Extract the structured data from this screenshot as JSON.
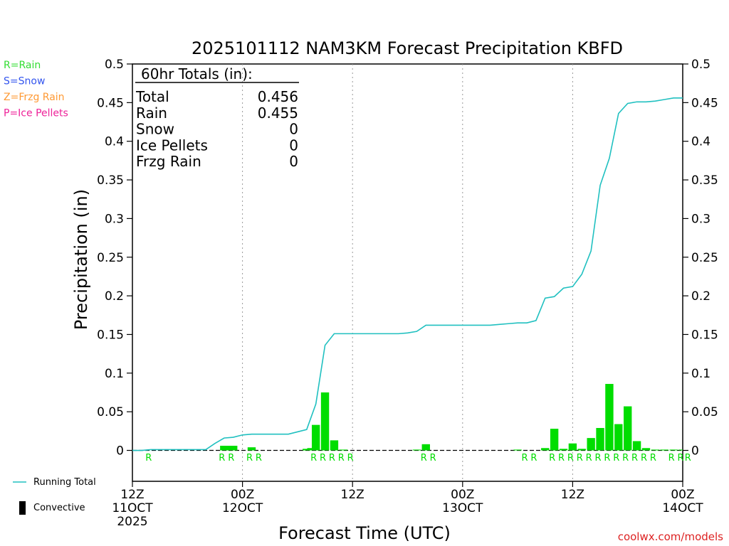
{
  "chart_data": {
    "type": "bar",
    "title": "2025101112 NAM3KM Forecast Precipitation KBFD",
    "xlabel": "Forecast Time (UTC)",
    "ylabel": "Precipitation (in)",
    "ylim": [
      -0.04,
      0.5
    ],
    "y_ticks": [
      0,
      0.05,
      0.1,
      0.15,
      0.2,
      0.25,
      0.3,
      0.35,
      0.4,
      0.45,
      0.5
    ],
    "y_tick_labels": [
      "0",
      "0.05",
      "0.1",
      "0.15",
      "0.2",
      "0.25",
      "0.3",
      "0.35",
      "0.4",
      "0.45",
      "0.5"
    ],
    "x_range_hours": [
      0,
      60
    ],
    "x_ticks": [
      {
        "hour": 0,
        "lines": [
          "12Z",
          "11OCT",
          "2025"
        ]
      },
      {
        "hour": 12,
        "lines": [
          "00Z",
          "12OCT"
        ]
      },
      {
        "hour": 24,
        "lines": [
          "12Z"
        ]
      },
      {
        "hour": 36,
        "lines": [
          "00Z",
          "13OCT"
        ]
      },
      {
        "hour": 48,
        "lines": [
          "12Z"
        ]
      },
      {
        "hour": 60,
        "lines": [
          "00Z",
          "14OCT"
        ]
      }
    ],
    "grid_x_hours": [
      12,
      24,
      36,
      48
    ],
    "bar_series": {
      "name": "Hourly Precipitation",
      "color": "#00dd00",
      "hours": [
        10,
        10.5,
        11,
        13,
        19,
        19.5,
        20,
        21,
        22,
        23,
        31,
        32,
        42,
        45,
        46,
        47,
        48,
        49,
        50,
        51,
        52,
        53,
        54,
        55,
        56,
        57,
        58,
        59,
        60
      ],
      "values": [
        0.006,
        0.006,
        0.006,
        0.004,
        0.002,
        0.003,
        0.033,
        0.075,
        0.013,
        0.001,
        0.001,
        0.008,
        0.001,
        0.003,
        0.028,
        0.002,
        0.009,
        0.002,
        0.016,
        0.029,
        0.086,
        0.034,
        0.057,
        0.012,
        0.003,
        0.001,
        0.001,
        0.001,
        0.001
      ]
    },
    "running_total": {
      "name": "Running Total",
      "color": "#20c0c0",
      "hours": [
        0,
        1,
        2,
        3,
        4,
        5,
        6,
        7,
        8,
        9,
        10,
        11,
        12,
        13,
        14,
        15,
        16,
        17,
        18,
        19,
        20,
        21,
        22,
        23,
        24,
        25,
        26,
        27,
        28,
        29,
        30,
        31,
        32,
        33,
        34,
        35,
        36,
        37,
        38,
        39,
        40,
        41,
        42,
        43,
        44,
        45,
        46,
        47,
        48,
        49,
        50,
        51,
        52,
        53,
        54,
        55,
        56,
        57,
        58,
        59,
        60
      ],
      "values": [
        0,
        0,
        0.001,
        0.001,
        0.001,
        0.001,
        0.001,
        0.001,
        0.001,
        0.009,
        0.016,
        0.017,
        0.02,
        0.021,
        0.021,
        0.021,
        0.021,
        0.021,
        0.024,
        0.027,
        0.06,
        0.136,
        0.151,
        0.151,
        0.151,
        0.151,
        0.151,
        0.151,
        0.151,
        0.151,
        0.152,
        0.154,
        0.162,
        0.162,
        0.162,
        0.162,
        0.162,
        0.162,
        0.162,
        0.162,
        0.163,
        0.164,
        0.165,
        0.165,
        0.168,
        0.197,
        0.199,
        0.21,
        0.212,
        0.228,
        0.258,
        0.343,
        0.378,
        0.436,
        0.449,
        0.451,
        0.451,
        0.452,
        0.454,
        0.456,
        0.456
      ]
    },
    "ptype_markers": {
      "color": "#00dd00",
      "hours": [
        2,
        10,
        11,
        13,
        14,
        20,
        21,
        22,
        23,
        24,
        32,
        33,
        43,
        44,
        46,
        47,
        48,
        49,
        50,
        51,
        52,
        53,
        54,
        55,
        56,
        57,
        59,
        60,
        60.8
      ],
      "labels": [
        "R",
        "R",
        "R",
        "R",
        "R",
        "R",
        "R",
        "R",
        "R",
        "R",
        "R",
        "R",
        "R",
        "R",
        "R",
        "R",
        "R",
        "R",
        "R",
        "R",
        "R",
        "R",
        "R",
        "R",
        "R",
        "R",
        "R",
        "R",
        "R"
      ]
    },
    "totals_box": {
      "header": "60hr Totals (in):",
      "rows": [
        {
          "label": "Total",
          "value": "0.456"
        },
        {
          "label": "Rain",
          "value": "0.455"
        },
        {
          "label": "Snow",
          "value": "0"
        },
        {
          "label": "Ice Pellets",
          "value": "0"
        },
        {
          "label": "Frzg Rain",
          "value": "0"
        }
      ]
    },
    "ptype_legend": [
      {
        "text": "R=Rain",
        "color": "#33dd33"
      },
      {
        "text": "S=Snow",
        "color": "#3355ee"
      },
      {
        "text": "Z=Frzg Rain",
        "color": "#ff9933"
      },
      {
        "text": "P=Ice Pellets",
        "color": "#ee2299"
      }
    ],
    "series_legend": [
      {
        "text": "Running Total",
        "kind": "line",
        "color": "#20c0c0"
      },
      {
        "text": "Convective",
        "kind": "bar",
        "color": "#000000"
      }
    ],
    "credit": {
      "text": "coolwx.com/models",
      "color": "#dd2222"
    }
  }
}
